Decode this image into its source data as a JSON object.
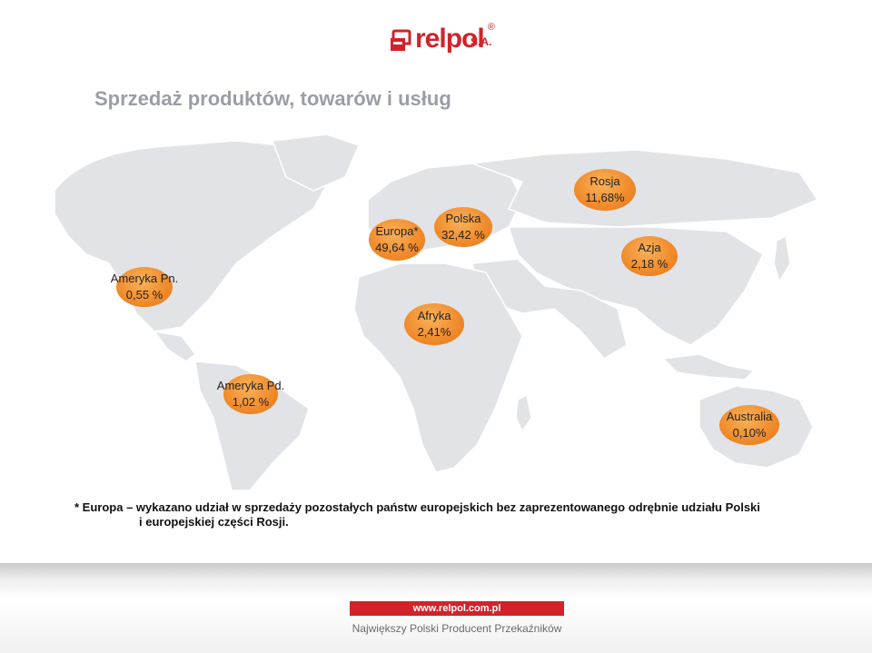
{
  "logo": {
    "brand": "relpol",
    "registered": "®",
    "suffix": "S.A."
  },
  "title": "Sprzedaż produktów, towarów i usług",
  "regions": [
    {
      "name": "Ameryka Pn.",
      "value": "0,55 %"
    },
    {
      "name": "Europa*",
      "value": "49,64 %"
    },
    {
      "name": "Polska",
      "value": "32,42 %"
    },
    {
      "name": "Rosja",
      "value": "11,68%"
    },
    {
      "name": "Azja",
      "value": "2,18 %"
    },
    {
      "name": "Afryka",
      "value": "2,41%"
    },
    {
      "name": "Ameryka Pd.",
      "value": "1,02 %"
    },
    {
      "name": "Australia",
      "value": "0,10%"
    }
  ],
  "footnote": {
    "line1": "* Europa – wykazano udział w sprzedaży pozostałych państw europejskich bez zaprezentowanego odrębnie udziału Polski",
    "line2": "i europejskiej części Rosji."
  },
  "footer": {
    "url": "www.relpol.com.pl",
    "slogan": "Największy Polski Producent Przekaźników"
  },
  "colors": {
    "accent": "#d2232a",
    "bubble": "#f08a2a",
    "title": "#9a9ea6",
    "map_land": "#e2e3e6"
  }
}
